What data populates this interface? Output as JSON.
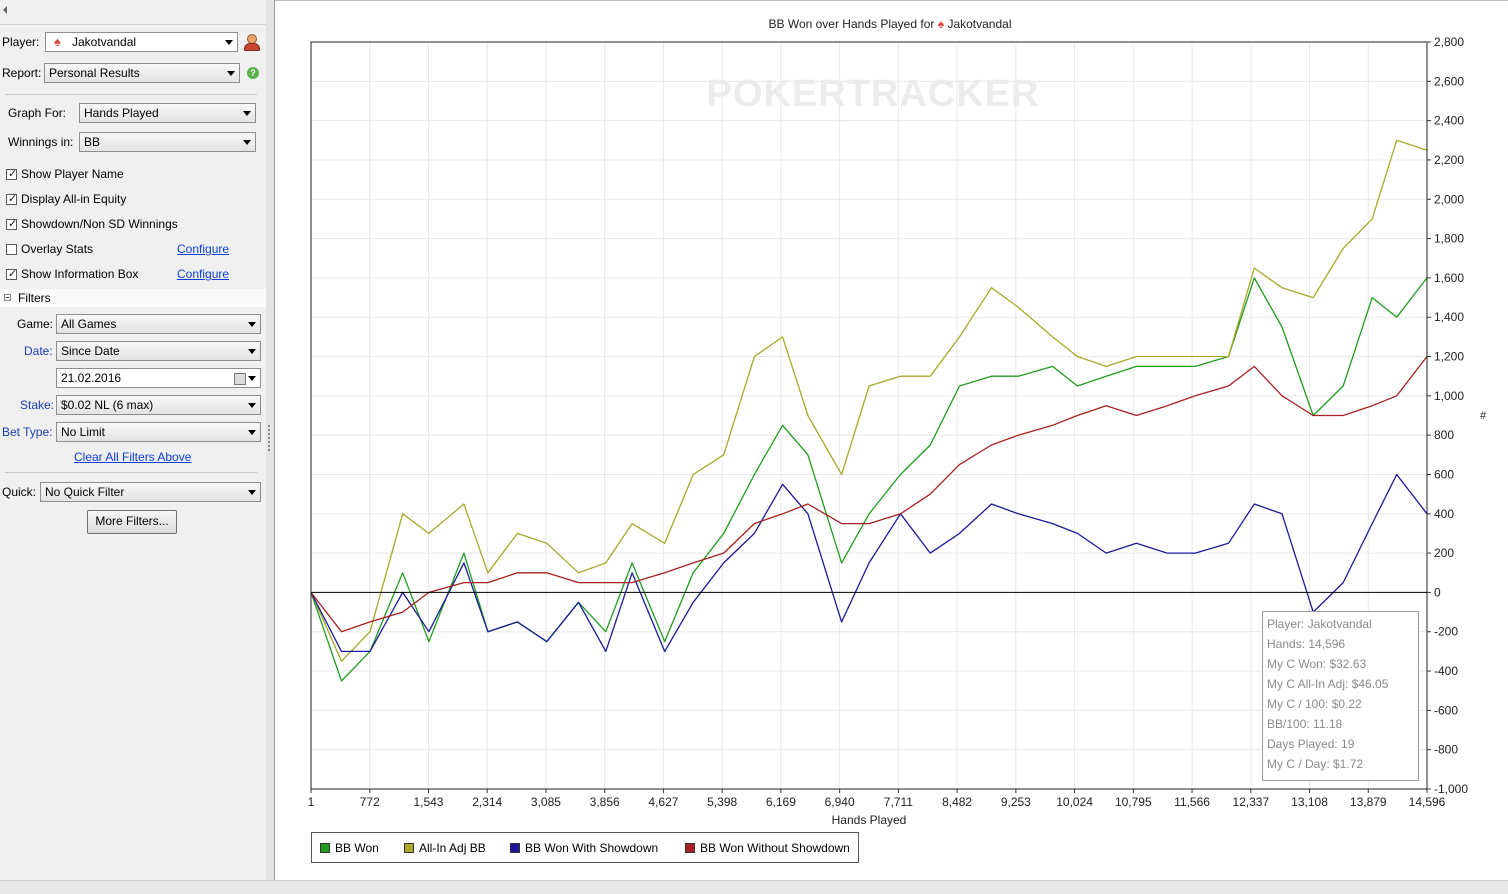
{
  "sidebar": {
    "player_label": "Player:",
    "player_value": "Jakotvandal",
    "report_label": "Report:",
    "report_value": "Personal Results",
    "graph_for_label": "Graph For:",
    "graph_for_value": "Hands Played",
    "winnings_in_label": "Winnings in:",
    "winnings_in_value": "BB",
    "checkboxes": [
      {
        "label": "Show Player Name",
        "checked": true
      },
      {
        "label": "Display All-in Equity",
        "checked": true
      },
      {
        "label": "Showdown/Non SD Winnings",
        "checked": true
      },
      {
        "label": "Overlay Stats",
        "checked": false
      },
      {
        "label": "Show Information Box",
        "checked": true
      }
    ],
    "configure_label": "Configure",
    "filters_header": "Filters",
    "game_label": "Game:",
    "game_value": "All Games",
    "date_label": "Date:",
    "date_value": "Since Date",
    "date_input": "21.02.2016",
    "stake_label": "Stake:",
    "stake_value": "$0.02 NL (6 max)",
    "bet_type_label": "Bet Type:",
    "bet_type_value": "No Limit",
    "clear_filters": "Clear All Filters Above",
    "quick_label": "Quick:",
    "quick_value": "No Quick Filter",
    "more_filters": "More Filters..."
  },
  "watermark": "POKERTRACKER",
  "info_box": [
    "Player: Jakotvandal",
    "Hands: 14,596",
    "My C Won: $32.63",
    "My C All-In Adj: $46.05",
    "My C / 100: $0.22",
    "BB/100: 11.18",
    "Days Played: 19",
    "My C / Day: $1.72"
  ],
  "colors": {
    "bb_won": "#1f9c1f",
    "all_in_adj": "#a8a82a",
    "showdown": "#1a1a9a",
    "non_showdown": "#a82020",
    "grid": "#e8e8e8"
  },
  "chart_data": {
    "type": "line",
    "title": "BB Won over Hands Played for",
    "title_player": "Jakotvandal",
    "xlabel": "Hands Played",
    "ylabel": "",
    "x_ticks": [
      "1",
      "772",
      "1,543",
      "2,314",
      "3,085",
      "3,856",
      "4,627",
      "5,398",
      "6,169",
      "6,940",
      "7,711",
      "8,482",
      "9,253",
      "10,024",
      "10,795",
      "11,566",
      "12,337",
      "13,108",
      "13,879",
      "14,596"
    ],
    "y_ticks": [
      "2,800",
      "2,600",
      "2,400",
      "2,200",
      "2,000",
      "1,800",
      "1,600",
      "1,400",
      "1,200",
      "1,000",
      "800",
      "600",
      "400",
      "200",
      "0",
      "-200",
      "-400",
      "-600",
      "-800",
      "-1,000"
    ],
    "xlim": [
      1,
      14596
    ],
    "ylim": [
      -1000,
      2800
    ],
    "grid": true,
    "legend_position": "bottom-left",
    "x": [
      1,
      400,
      772,
      1200,
      1543,
      2000,
      2314,
      2700,
      3085,
      3500,
      3856,
      4200,
      4627,
      5000,
      5398,
      5800,
      6169,
      6500,
      6940,
      7300,
      7711,
      8100,
      8482,
      8900,
      9253,
      9700,
      10024,
      10400,
      10795,
      11200,
      11566,
      12000,
      12337,
      12700,
      13108,
      13500,
      13879,
      14200,
      14596
    ],
    "series": [
      {
        "name": "BB Won",
        "values": [
          0,
          -450,
          -300,
          100,
          -250,
          200,
          -200,
          -150,
          -250,
          -50,
          -200,
          150,
          -250,
          100,
          300,
          600,
          850,
          700,
          150,
          400,
          600,
          750,
          1050,
          1100,
          1100,
          1150,
          1050,
          1100,
          1150,
          1150,
          1150,
          1200,
          1600,
          1350,
          900,
          1050,
          1500,
          1400,
          1600
        ]
      },
      {
        "name": "All-In Adj BB",
        "values": [
          0,
          -350,
          -200,
          400,
          300,
          450,
          100,
          300,
          250,
          100,
          150,
          350,
          250,
          600,
          700,
          1200,
          1300,
          900,
          600,
          1050,
          1100,
          1100,
          1300,
          1550,
          1450,
          1300,
          1200,
          1150,
          1200,
          1200,
          1200,
          1200,
          1650,
          1550,
          1500,
          1750,
          1900,
          2300,
          2250
        ]
      },
      {
        "name": "BB Won With Showdown",
        "values": [
          0,
          -300,
          -300,
          0,
          -200,
          150,
          -200,
          -150,
          -250,
          -50,
          -300,
          100,
          -300,
          -50,
          150,
          300,
          550,
          400,
          -150,
          150,
          400,
          200,
          300,
          450,
          400,
          350,
          300,
          200,
          250,
          200,
          200,
          250,
          450,
          400,
          -100,
          50,
          350,
          600,
          400
        ]
      },
      {
        "name": "BB Won Without Showdown",
        "values": [
          0,
          -200,
          -150,
          -100,
          0,
          50,
          50,
          100,
          100,
          50,
          50,
          50,
          100,
          150,
          200,
          350,
          400,
          450,
          350,
          350,
          400,
          500,
          650,
          750,
          800,
          850,
          900,
          950,
          900,
          950,
          1000,
          1050,
          1150,
          1000,
          900,
          900,
          950,
          1000,
          1200
        ]
      }
    ]
  },
  "legend": [
    "BB Won",
    "All-In Adj BB",
    "BB Won With Showdown",
    "BB Won Without Showdown"
  ]
}
